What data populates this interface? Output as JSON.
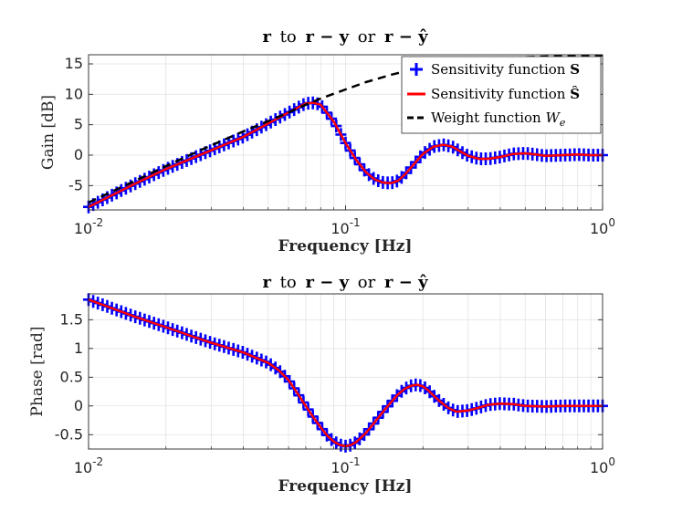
{
  "chart_data": [
    {
      "type": "line",
      "title": "r to r − y or r − ŷ",
      "title_parts": [
        "r",
        "to",
        "r − y",
        "or",
        "r − ŷ"
      ],
      "xlabel": "Frequency [Hz]",
      "ylabel": "Gain [dB]",
      "xscale": "log",
      "xlim": [
        0.01,
        1
      ],
      "ylim": [
        -9,
        16.5
      ],
      "yticks": [
        -5,
        0,
        5,
        10,
        15
      ],
      "ytick_labels": [
        "-5",
        "0",
        "5",
        "10",
        "15"
      ],
      "xtick_labels": [
        "10^-2",
        "10^-1",
        "10^0"
      ],
      "xtick_label_parts": [
        {
          "base": "10",
          "exp": "-2"
        },
        {
          "base": "10",
          "exp": "-1"
        },
        {
          "base": "10",
          "exp": "0"
        }
      ],
      "grid": true,
      "legend": "top-right",
      "series": [
        {
          "name": "Sensitivity function S",
          "label_text": "Sensitivity function",
          "label_symbol": "S",
          "color": "#0000ff",
          "style": "plus-markers",
          "x": [
            0.01,
            0.015,
            0.02,
            0.03,
            0.04,
            0.05,
            0.06,
            0.07,
            0.075,
            0.08,
            0.09,
            0.1,
            0.11,
            0.12,
            0.13,
            0.14,
            0.15,
            0.16,
            0.17,
            0.18,
            0.2,
            0.22,
            0.24,
            0.26,
            0.28,
            0.3,
            0.33,
            0.36,
            0.4,
            0.45,
            0.5,
            0.55,
            0.6,
            0.7,
            0.8,
            0.9,
            1.0
          ],
          "y": [
            -8.5,
            -4.8,
            -2.3,
            0.8,
            3.0,
            5.2,
            7.0,
            8.5,
            8.6,
            8.3,
            5.5,
            2.0,
            -0.8,
            -2.8,
            -4.0,
            -4.5,
            -4.6,
            -4.2,
            -3.2,
            -2.0,
            0.2,
            1.4,
            1.7,
            1.4,
            0.6,
            -0.1,
            -0.6,
            -0.6,
            -0.3,
            0.2,
            0.3,
            0.1,
            -0.1,
            0.0,
            0.1,
            0.0,
            0.0
          ]
        },
        {
          "name": "Sensitivity function Ŝ",
          "label_text": "Sensitivity function",
          "label_symbol": "Ŝ",
          "color": "#ff0000",
          "style": "solid",
          "x": [
            0.01,
            0.015,
            0.02,
            0.03,
            0.04,
            0.05,
            0.06,
            0.07,
            0.075,
            0.08,
            0.09,
            0.1,
            0.11,
            0.12,
            0.13,
            0.14,
            0.15,
            0.16,
            0.17,
            0.18,
            0.2,
            0.22,
            0.24,
            0.26,
            0.28,
            0.3,
            0.33,
            0.36,
            0.4,
            0.45,
            0.5,
            0.55,
            0.6,
            0.7,
            0.8,
            0.9,
            1.0
          ],
          "y": [
            -8.5,
            -4.8,
            -2.3,
            0.8,
            3.0,
            5.2,
            7.0,
            8.5,
            8.6,
            8.3,
            5.5,
            2.0,
            -0.8,
            -2.8,
            -4.0,
            -4.5,
            -4.6,
            -4.2,
            -3.2,
            -2.0,
            0.2,
            1.4,
            1.7,
            1.4,
            0.6,
            -0.1,
            -0.6,
            -0.6,
            -0.3,
            0.2,
            0.3,
            0.1,
            -0.1,
            0.0,
            0.1,
            0.0,
            0.0
          ]
        },
        {
          "name": "Weight function We",
          "label_text": "Weight function",
          "label_symbol": "W",
          "label_subscript": "e",
          "color": "#000000",
          "style": "dashed",
          "x": [
            0.01,
            0.015,
            0.02,
            0.03,
            0.04,
            0.05,
            0.06,
            0.07,
            0.08,
            0.1,
            0.12,
            0.15,
            0.2,
            0.3,
            0.5,
            0.7,
            1.0
          ],
          "y": [
            -7.8,
            -4.3,
            -1.8,
            1.6,
            3.9,
            5.6,
            7.0,
            8.3,
            9.3,
            10.8,
            12.0,
            13.2,
            14.5,
            15.5,
            16.1,
            16.3,
            16.4
          ]
        }
      ]
    },
    {
      "type": "line",
      "title": "r to r − y or r − ŷ",
      "title_parts": [
        "r",
        "to",
        "r − y",
        "or",
        "r − ŷ"
      ],
      "xlabel": "Frequency [Hz]",
      "ylabel": "Phase [rad]",
      "xscale": "log",
      "xlim": [
        0.01,
        1
      ],
      "ylim": [
        -0.75,
        1.95
      ],
      "yticks": [
        -0.5,
        0,
        0.5,
        1,
        1.5
      ],
      "ytick_labels": [
        "-0.5",
        "0",
        "0.5",
        "1",
        "1.5"
      ],
      "xtick_labels": [
        "10^-2",
        "10^-1",
        "10^0"
      ],
      "xtick_label_parts": [
        {
          "base": "10",
          "exp": "-2"
        },
        {
          "base": "10",
          "exp": "-1"
        },
        {
          "base": "10",
          "exp": "0"
        }
      ],
      "grid": true,
      "legend": "none",
      "series": [
        {
          "name": "Sensitivity function S",
          "color": "#0000ff",
          "style": "plus-markers",
          "x": [
            0.01,
            0.012,
            0.015,
            0.02,
            0.025,
            0.03,
            0.04,
            0.05,
            0.055,
            0.06,
            0.065,
            0.07,
            0.075,
            0.08,
            0.085,
            0.09,
            0.095,
            0.1,
            0.105,
            0.11,
            0.12,
            0.13,
            0.14,
            0.15,
            0.16,
            0.17,
            0.18,
            0.19,
            0.2,
            0.21,
            0.22,
            0.23,
            0.25,
            0.27,
            0.3,
            0.33,
            0.36,
            0.4,
            0.45,
            0.5,
            0.6,
            0.7,
            0.8,
            1.0
          ],
          "y": [
            1.85,
            1.72,
            1.56,
            1.37,
            1.22,
            1.1,
            0.93,
            0.75,
            0.62,
            0.45,
            0.22,
            0.0,
            -0.2,
            -0.37,
            -0.52,
            -0.62,
            -0.68,
            -0.7,
            -0.68,
            -0.63,
            -0.47,
            -0.28,
            -0.1,
            0.06,
            0.2,
            0.3,
            0.35,
            0.37,
            0.34,
            0.27,
            0.18,
            0.1,
            -0.03,
            -0.1,
            -0.08,
            -0.03,
            0.02,
            0.04,
            0.03,
            0.0,
            -0.01,
            0.0,
            0.0,
            0.0
          ]
        },
        {
          "name": "Sensitivity function Ŝ",
          "color": "#ff0000",
          "style": "solid",
          "x": [
            0.01,
            0.012,
            0.015,
            0.02,
            0.025,
            0.03,
            0.04,
            0.05,
            0.055,
            0.06,
            0.065,
            0.07,
            0.075,
            0.08,
            0.085,
            0.09,
            0.095,
            0.1,
            0.105,
            0.11,
            0.12,
            0.13,
            0.14,
            0.15,
            0.16,
            0.17,
            0.18,
            0.19,
            0.2,
            0.21,
            0.22,
            0.23,
            0.25,
            0.27,
            0.3,
            0.33,
            0.36,
            0.4,
            0.45,
            0.5,
            0.6,
            0.7,
            0.8,
            1.0
          ],
          "y": [
            1.85,
            1.72,
            1.56,
            1.37,
            1.22,
            1.1,
            0.93,
            0.75,
            0.62,
            0.45,
            0.22,
            0.0,
            -0.2,
            -0.37,
            -0.52,
            -0.62,
            -0.68,
            -0.7,
            -0.68,
            -0.63,
            -0.47,
            -0.28,
            -0.1,
            0.06,
            0.2,
            0.3,
            0.35,
            0.37,
            0.34,
            0.27,
            0.18,
            0.1,
            -0.03,
            -0.1,
            -0.08,
            -0.03,
            0.02,
            0.04,
            0.03,
            0.0,
            -0.01,
            0.0,
            0.0,
            0.0
          ]
        }
      ]
    }
  ]
}
